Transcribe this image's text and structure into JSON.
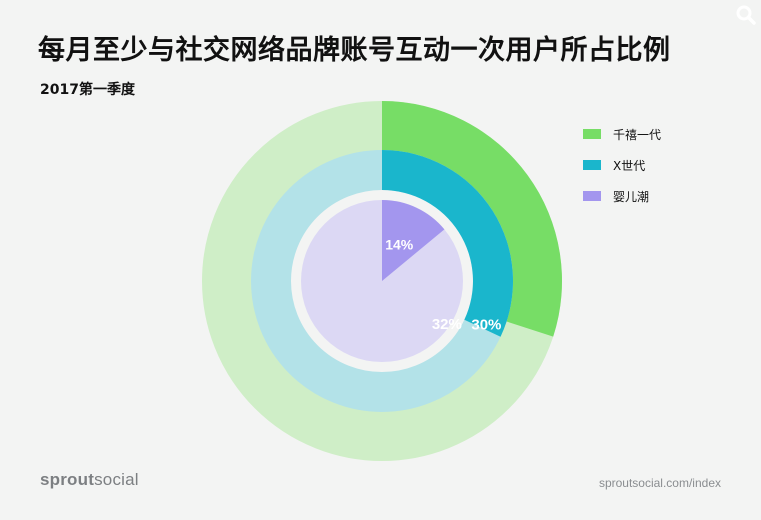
{
  "title": "每月至少与社交网络品牌账号互动一次用户所占比例",
  "subtitle": "2017第一季度",
  "search_icon": "search-icon",
  "brand": {
    "part1": "sprout",
    "part2": "social"
  },
  "url": "sproutsocial.com/index",
  "chart_data": {
    "type": "nested-donut",
    "series": [
      {
        "name": "千禧一代",
        "value": 30,
        "label": "30%",
        "color": "#77dd66",
        "track_color": "#cfeec7"
      },
      {
        "name": "X世代",
        "value": 32,
        "label": "32%",
        "color": "#1ab6cc",
        "track_color": "#b3e2e8"
      },
      {
        "name": "婴儿潮",
        "value": 14,
        "label": "14%",
        "color": "#a396ee",
        "track_color": "#dcd8f4"
      }
    ],
    "legend": "top-right"
  }
}
